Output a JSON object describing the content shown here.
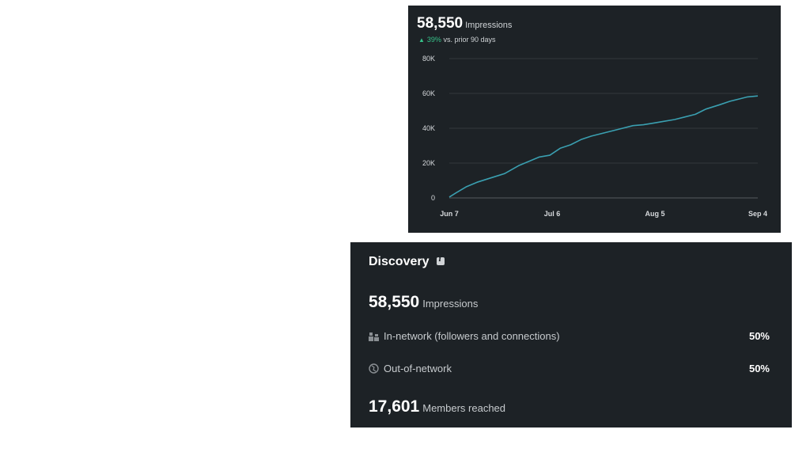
{
  "impressions_card": {
    "total": "58,550",
    "total_label": "Impressions",
    "change_pct": "39%",
    "change_text": "vs. prior 90 days",
    "accent_color": "#37c28a",
    "line_color": "#3a9fb0"
  },
  "chart_data": {
    "type": "line",
    "title": "",
    "xlabel": "",
    "ylabel": "",
    "x_ticks": [
      "Jun 7",
      "Jul 6",
      "Aug 5",
      "Sep 4"
    ],
    "y_ticks": [
      "0",
      "20K",
      "40K",
      "60K",
      "80K"
    ],
    "ylim": [
      0,
      80000
    ],
    "grid": true,
    "series": [
      {
        "x": [
          "2024-06-07",
          "2024-06-09",
          "2024-06-12",
          "2024-06-15",
          "2024-06-19",
          "2024-06-23",
          "2024-06-27",
          "2024-06-30",
          "2024-07-03",
          "2024-07-06",
          "2024-07-09",
          "2024-07-12",
          "2024-07-15",
          "2024-07-18",
          "2024-07-22",
          "2024-07-26",
          "2024-07-30",
          "2024-08-02",
          "2024-08-05",
          "2024-08-08",
          "2024-08-11",
          "2024-08-14",
          "2024-08-17",
          "2024-08-20",
          "2024-08-24",
          "2024-08-27",
          "2024-08-30",
          "2024-09-01",
          "2024-09-04"
        ],
        "values": [
          500,
          3000,
          6500,
          9000,
          11500,
          14000,
          18500,
          21000,
          23500,
          24500,
          28500,
          30500,
          33500,
          35500,
          37500,
          39500,
          41500,
          42000,
          43000,
          44000,
          45000,
          46500,
          48000,
          51000,
          53500,
          55500,
          57000,
          58000,
          58550
        ]
      }
    ]
  },
  "discovery": {
    "title": "Discovery",
    "impressions_value": "58,550",
    "impressions_label": "Impressions",
    "in_network_label": "In-network (followers and connections)",
    "in_network_pct": "50%",
    "out_network_label": "Out-of-network",
    "out_network_pct": "50%",
    "members_value": "17,601",
    "members_label": "Members reached"
  }
}
